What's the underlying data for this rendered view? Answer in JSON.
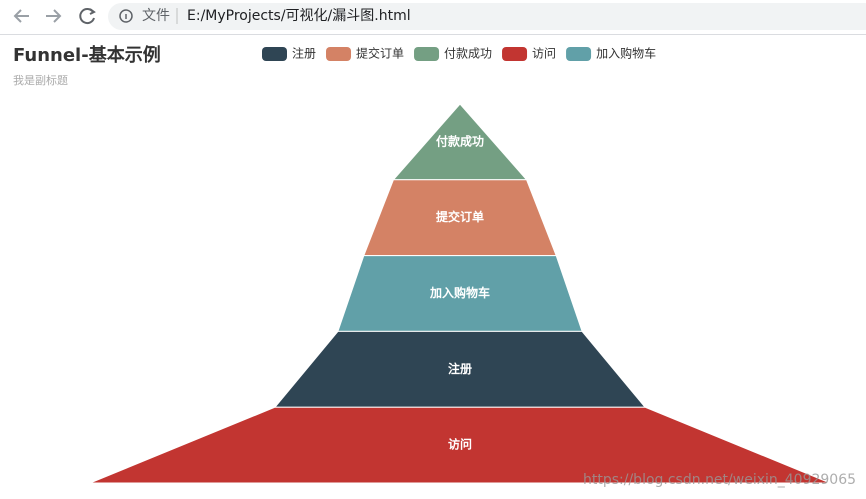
{
  "browser": {
    "protocol_label": "文件",
    "address": "E:/MyProjects/可视化/漏斗图.html"
  },
  "chart_data": {
    "type": "funnel",
    "title": "Funnel-基本示例",
    "subtitle": "我是副标题",
    "categories": [
      "注册",
      "提交订单",
      "付款成功",
      "访问",
      "加入购物车"
    ],
    "values": [
      50,
      26,
      18,
      100,
      33
    ],
    "colors": [
      "#2f4554",
      "#d48265",
      "#749f83",
      "#c23531",
      "#61a0a8"
    ],
    "sort": "ascending",
    "legend": "top"
  },
  "watermark": "https://blog.csdn.net/weixin_40929065"
}
